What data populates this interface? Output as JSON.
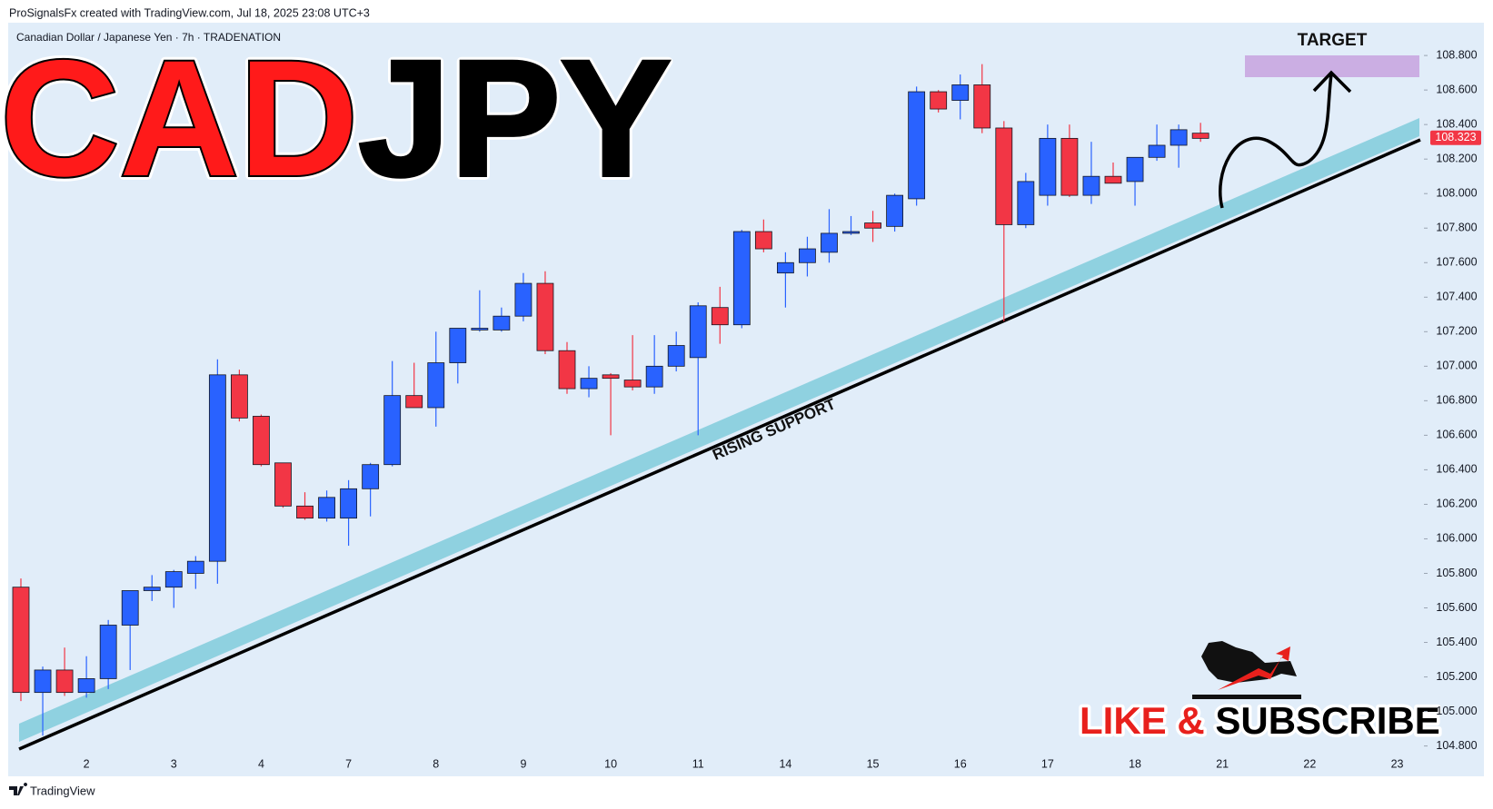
{
  "header": {
    "credit": "ProSignalsFx created with TradingView.com, Jul 18, 2025 23:08 UTC+3",
    "footer": "TradingView"
  },
  "chart_data": {
    "type": "candlestick",
    "symbol_info": "Canadian Dollar / Japanese Yen · 7h · TRADENATION",
    "title_parts": [
      {
        "text": "CAD",
        "color": "#ff1a1a"
      },
      {
        "text": "JPY",
        "color": "#000000"
      }
    ],
    "annotations": {
      "target": "TARGET",
      "support": "RISING SUPPORT",
      "cta_parts": [
        {
          "text": "LIKE & ",
          "color": "#e8201c"
        },
        {
          "text": "SUBSCRIBE",
          "color": "#000000"
        }
      ]
    },
    "up_color": "#2962ff",
    "down_color": "#f23645",
    "categories": [
      null,
      null,
      null,
      "2",
      null,
      null,
      null,
      "3",
      null,
      null,
      null,
      "4",
      null,
      null,
      null,
      "7",
      null,
      null,
      null,
      "8",
      null,
      null,
      null,
      "9",
      null,
      null,
      null,
      "10",
      null,
      null,
      null,
      "11",
      null,
      null,
      null,
      "14",
      null,
      null,
      null,
      "15",
      null,
      null,
      null,
      "16",
      null,
      null,
      null,
      "17",
      null,
      null,
      null,
      "18",
      null,
      null,
      null,
      "21",
      null,
      null,
      null,
      "22",
      null,
      null,
      null,
      "23"
    ],
    "open": [
      105.72,
      105.11,
      105.24,
      105.11,
      105.19,
      105.5,
      105.7,
      105.72,
      105.8,
      105.87,
      106.95,
      106.71,
      106.44,
      106.19,
      106.12,
      106.12,
      106.29,
      106.43,
      106.83,
      106.76,
      107.02,
      107.21,
      107.21,
      107.29,
      107.48,
      107.09,
      106.87,
      106.95,
      106.92,
      106.88,
      107.0,
      107.05,
      107.34,
      107.24,
      107.78,
      107.54,
      107.6,
      107.66,
      107.77,
      107.83,
      107.81,
      107.97,
      108.59,
      108.54,
      108.63,
      108.38,
      107.82,
      107.99,
      108.32,
      107.99,
      108.1,
      108.07,
      108.21,
      108.28,
      108.35,
      null,
      null,
      null,
      null,
      null,
      null,
      null,
      null,
      null
    ],
    "high": [
      105.77,
      105.26,
      105.37,
      105.32,
      105.53,
      105.7,
      105.79,
      105.82,
      105.9,
      107.04,
      106.98,
      106.72,
      106.44,
      106.27,
      106.28,
      106.34,
      106.44,
      107.03,
      107.02,
      107.2,
      107.22,
      107.44,
      107.34,
      107.54,
      107.55,
      107.14,
      107.0,
      106.96,
      107.18,
      107.18,
      107.2,
      107.37,
      107.46,
      107.79,
      107.85,
      107.66,
      107.75,
      107.91,
      107.87,
      107.9,
      108.0,
      108.62,
      108.6,
      108.69,
      108.75,
      108.42,
      108.12,
      108.4,
      108.4,
      108.3,
      108.18,
      108.21,
      108.4,
      108.4,
      108.41,
      null,
      null,
      null,
      null,
      null,
      null,
      null,
      null,
      null
    ],
    "low": [
      105.06,
      104.86,
      105.09,
      105.08,
      105.13,
      105.24,
      105.64,
      105.6,
      105.71,
      105.74,
      106.68,
      106.42,
      106.18,
      106.11,
      106.1,
      105.96,
      106.13,
      106.42,
      106.76,
      106.65,
      106.9,
      107.2,
      107.2,
      107.26,
      107.07,
      106.84,
      106.82,
      106.6,
      106.86,
      106.84,
      106.97,
      106.6,
      107.13,
      107.22,
      107.66,
      107.34,
      107.52,
      107.6,
      107.76,
      107.72,
      107.78,
      107.93,
      108.47,
      108.43,
      108.35,
      107.26,
      107.8,
      107.93,
      107.98,
      107.94,
      108.06,
      107.93,
      108.19,
      108.15,
      108.3,
      null,
      null,
      null,
      null,
      null,
      null,
      null,
      null,
      null
    ],
    "close": [
      105.11,
      105.24,
      105.11,
      105.19,
      105.5,
      105.7,
      105.72,
      105.81,
      105.87,
      106.95,
      106.7,
      106.43,
      106.19,
      106.12,
      106.24,
      106.29,
      106.43,
      106.83,
      106.76,
      107.02,
      107.22,
      107.22,
      107.29,
      107.48,
      107.09,
      106.87,
      106.93,
      106.93,
      106.88,
      107.0,
      107.12,
      107.35,
      107.24,
      107.78,
      107.68,
      107.6,
      107.68,
      107.77,
      107.78,
      107.8,
      107.99,
      108.59,
      108.49,
      108.63,
      108.38,
      107.82,
      108.07,
      108.32,
      107.99,
      108.1,
      108.06,
      108.21,
      108.28,
      108.37,
      108.32,
      null,
      null,
      null,
      null,
      null,
      null,
      null,
      null,
      null
    ],
    "last_price": 108.323,
    "ylim": [
      104.74,
      108.99
    ],
    "yticks": [
      {
        "value": 104.8,
        "label": "104.800"
      },
      {
        "value": 105.0,
        "label": "105.000"
      },
      {
        "value": 105.2,
        "label": "105.200"
      },
      {
        "value": 105.4,
        "label": "105.400"
      },
      {
        "value": 105.6,
        "label": "105.600"
      },
      {
        "value": 105.8,
        "label": "105.800"
      },
      {
        "value": 106.0,
        "label": "106.000"
      },
      {
        "value": 106.2,
        "label": "106.200"
      },
      {
        "value": 106.4,
        "label": "106.400"
      },
      {
        "value": 106.6,
        "label": "106.600"
      },
      {
        "value": 106.8,
        "label": "106.800"
      },
      {
        "value": 107.0,
        "label": "107.000"
      },
      {
        "value": 107.2,
        "label": "107.200"
      },
      {
        "value": 107.4,
        "label": "107.400"
      },
      {
        "value": 107.6,
        "label": "107.600"
      },
      {
        "value": 107.8,
        "label": "107.800"
      },
      {
        "value": 108.0,
        "label": "108.000"
      },
      {
        "value": 108.2,
        "label": "108.200"
      },
      {
        "value": 108.4,
        "label": "108.400"
      },
      {
        "value": 108.6,
        "label": "108.600"
      },
      {
        "value": 108.8,
        "label": "108.800"
      }
    ],
    "grid": false
  }
}
